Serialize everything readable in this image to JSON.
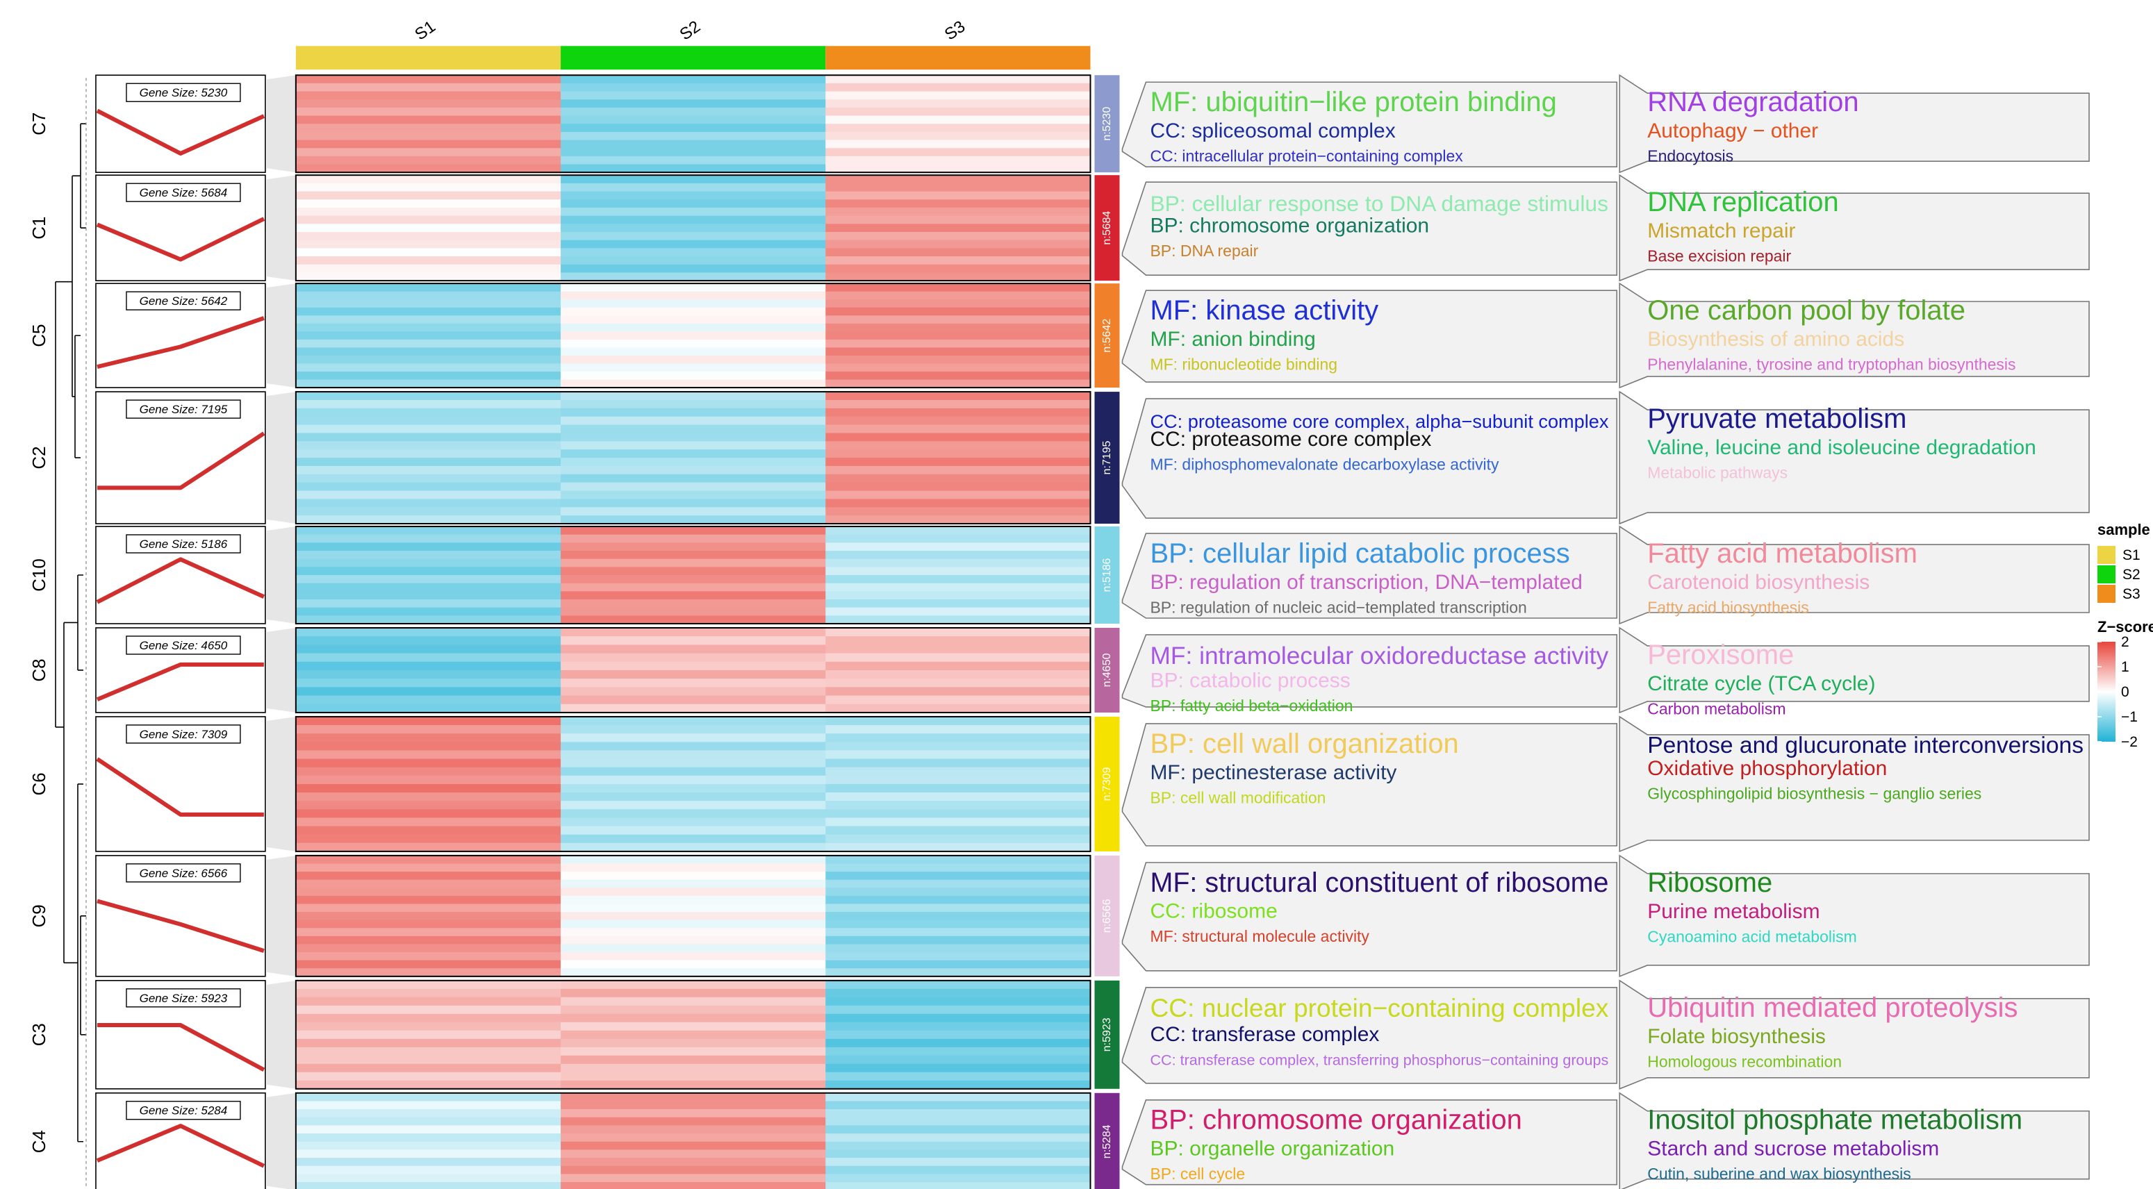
{
  "chart_data": {
    "type": "heatmap",
    "samples": [
      "S1",
      "S2",
      "S3"
    ],
    "sample_colors": {
      "S1": "#EDD445",
      "S2": "#0ED40E",
      "S3": "#F08C1B"
    },
    "legend": {
      "sample_title": "sample",
      "zscore_title": "Z−score",
      "zscore_ticks": [
        "2",
        "1",
        "0",
        "−1",
        "−2"
      ],
      "zscore_values": [
        2,
        1,
        0,
        -1,
        -2
      ],
      "zscore_colors": {
        "high": "#E8453C",
        "mid": "#FFFFFF",
        "low": "#1FB2D6"
      }
    },
    "clusters": [
      {
        "name": "C7",
        "gene_label": "Gene Size: 5230",
        "n_label": "n:5230",
        "color": "#8C9ACD",
        "profile": [
          0.4,
          -0.4,
          0.3
        ],
        "zscore": [
          0.55,
          -0.55,
          0.15
        ],
        "go_terms": [
          {
            "text": "MF: ubiquitin−like protein binding",
            "color": "#5DD34E"
          },
          {
            "text": "CC: spliceosomal complex",
            "color": "#1A2C9E"
          },
          {
            "text": "CC: intracellular protein−containing complex",
            "color": "#2F2FC7"
          }
        ],
        "kegg_terms": [
          {
            "text": "RNA degradation",
            "color": "#A23FE3"
          },
          {
            "text": "Autophagy − other",
            "color": "#E3521F"
          },
          {
            "text": "Endocytosis",
            "color": "#2A1F7A"
          }
        ]
      },
      {
        "name": "C1",
        "gene_label": "Gene Size: 5684",
        "n_label": "n:5684",
        "color": "#D7222F",
        "profile": [
          0.2,
          -0.4,
          0.3
        ],
        "zscore": [
          0.1,
          -0.55,
          0.55
        ],
        "go_terms": [
          {
            "text": "BP: cellular response to DNA damage stimulus",
            "color": "#8FEAB0"
          },
          {
            "text": "BP: chromosome organization",
            "color": "#137A5E"
          },
          {
            "text": "BP: DNA repair",
            "color": "#C9802C"
          }
        ],
        "kegg_terms": [
          {
            "text": "DNA replication",
            "color": "#2FC23A"
          },
          {
            "text": "Mismatch repair",
            "color": "#C9A52C"
          },
          {
            "text": "Base excision repair",
            "color": "#A61E2A"
          }
        ]
      },
      {
        "name": "C5",
        "gene_label": "Gene Size: 5642",
        "n_label": "n:5642",
        "color": "#F0812A",
        "profile": [
          -0.4,
          -0.05,
          0.45
        ],
        "zscore": [
          -0.5,
          0.0,
          0.6
        ],
        "go_terms": [
          {
            "text": "MF: kinase activity",
            "color": "#1E2FD6"
          },
          {
            "text": "MF: anion binding",
            "color": "#22A24A"
          },
          {
            "text": "MF: ribonucleotide binding",
            "color": "#C8C41E"
          }
        ],
        "kegg_terms": [
          {
            "text": "One carbon pool by folate",
            "color": "#5AA82A"
          },
          {
            "text": "Biosynthesis of amino acids",
            "color": "#F2D3A0"
          },
          {
            "text": "Phenylalanine, tyrosine and tryptophan biosynthesis",
            "color": "#D56AD0"
          }
        ]
      },
      {
        "name": "C2",
        "gene_label": "Gene Size: 7195",
        "n_label": "n:7195",
        "color": "#1F235F",
        "profile": [
          -0.3,
          -0.3,
          0.45
        ],
        "zscore": [
          -0.4,
          -0.4,
          0.6
        ],
        "go_terms": [
          {
            "text": "CC: proteasome core complex, alpha−subunit complex",
            "color": "#1321C9"
          },
          {
            "text": "CC: proteasome core complex",
            "color": "#111111"
          },
          {
            "text": "MF: diphosphomevalonate decarboxylase activity",
            "color": "#3466D1"
          }
        ],
        "kegg_terms": [
          {
            "text": "Pyruvate metabolism",
            "color": "#1A1A8C"
          },
          {
            "text": "Valine, leucine and isoleucine degradation",
            "color": "#1FB873"
          },
          {
            "text": "Metabolic pathways",
            "color": "#F2C2D8"
          }
        ]
      },
      {
        "name": "C10",
        "gene_label": "Gene Size: 5186",
        "n_label": "n:5186",
        "color": "#7FD4E5",
        "profile": [
          -0.35,
          0.45,
          -0.25
        ],
        "zscore": [
          -0.55,
          0.6,
          -0.3
        ],
        "go_terms": [
          {
            "text": "BP: cellular lipid catabolic process",
            "color": "#3A95E0"
          },
          {
            "text": "BP: regulation of transcription, DNA−templated",
            "color": "#C860C8"
          },
          {
            "text": "BP: regulation of nucleic acid−templated transcription",
            "color": "#6A6A6A"
          }
        ],
        "kegg_terms": [
          {
            "text": "Fatty acid metabolism",
            "color": "#F08A9A"
          },
          {
            "text": "Carotenoid biosynthesis",
            "color": "#F2A6C8"
          },
          {
            "text": "Fatty acid biosynthesis",
            "color": "#E8A86A"
          }
        ]
      },
      {
        "name": "C8",
        "gene_label": "Gene Size: 4650",
        "n_label": "n:4650",
        "color": "#B7679E",
        "profile": [
          -0.45,
          0.3,
          0.3
        ],
        "zscore": [
          -0.65,
          0.35,
          0.35
        ],
        "go_terms": [
          {
            "text": "MF: intramolecular oxidoreductase activity",
            "color": "#A559E0"
          },
          {
            "text": "BP: catabolic process",
            "color": "#F2B6E8"
          },
          {
            "text": "BP: fatty acid beta−oxidation",
            "color": "#3FC11A"
          }
        ],
        "kegg_terms": [
          {
            "text": "Peroxisome",
            "color": "#F7B8D6"
          },
          {
            "text": "Citrate cycle (TCA cycle)",
            "color": "#1FAE5B"
          },
          {
            "text": "Carbon metabolism",
            "color": "#9A1FB0"
          }
        ]
      },
      {
        "name": "C6",
        "gene_label": "Gene Size: 7309",
        "n_label": "n:7309",
        "color": "#F5E200",
        "profile": [
          0.45,
          -0.3,
          -0.3
        ],
        "zscore": [
          0.65,
          -0.35,
          -0.35
        ],
        "go_terms": [
          {
            "text": "BP: cell wall organization",
            "color": "#F2CA5A"
          },
          {
            "text": "MF: pectinesterase activity",
            "color": "#1F3A6A"
          },
          {
            "text": "BP: cell wall modification",
            "color": "#C2D81E"
          }
        ],
        "kegg_terms": [
          {
            "text": "Pentose and glucuronate interconversions",
            "color": "#12126E"
          },
          {
            "text": "Oxidative phosphorylation",
            "color": "#C21E1E"
          },
          {
            "text": "Glycosphingolipid biosynthesis − ganglio series",
            "color": "#4CA81E"
          }
        ]
      },
      {
        "name": "C9",
        "gene_label": "Gene Size: 6566",
        "n_label": "n:6566",
        "color": "#E8C8DE",
        "profile": [
          0.35,
          0.0,
          -0.4
        ],
        "zscore": [
          0.6,
          0.0,
          -0.5
        ],
        "go_terms": [
          {
            "text": "MF: structural constituent of ribosome",
            "color": "#2A0F6E"
          },
          {
            "text": "CC: ribosome",
            "color": "#7CE01E"
          },
          {
            "text": "MF: structural molecule activity",
            "color": "#D8402A"
          }
        ],
        "kegg_terms": [
          {
            "text": "Ribosome",
            "color": "#1E8A1E"
          },
          {
            "text": "Purine metabolism",
            "color": "#C21E7E"
          },
          {
            "text": "Cyanoamino acid metabolism",
            "color": "#2FD8C2"
          }
        ]
      },
      {
        "name": "C3",
        "gene_label": "Gene Size: 5923",
        "n_label": "n:5923",
        "color": "#147A3A",
        "profile": [
          0.3,
          0.3,
          -0.45
        ],
        "zscore": [
          0.35,
          0.35,
          -0.65
        ],
        "go_terms": [
          {
            "text": "CC: nuclear protein−containing complex",
            "color": "#C8D81E"
          },
          {
            "text": "CC: transferase complex",
            "color": "#12126E"
          },
          {
            "text": "CC: transferase complex, transferring phosphorus−containing groups",
            "color": "#B66AE0"
          }
        ],
        "kegg_terms": [
          {
            "text": "Ubiquitin mediated proteolysis",
            "color": "#E86AB0"
          },
          {
            "text": "Folate biosynthesis",
            "color": "#7AA81E"
          },
          {
            "text": "Homologous recombination",
            "color": "#7AC21E"
          }
        ]
      },
      {
        "name": "C4",
        "gene_label": "Gene Size: 5284",
        "n_label": "n:5284",
        "color": "#7A2A8C",
        "profile": [
          -0.2,
          0.45,
          -0.3
        ],
        "zscore": [
          -0.2,
          0.55,
          -0.4
        ],
        "go_terms": [
          {
            "text": "BP: chromosome organization",
            "color": "#D21E6A"
          },
          {
            "text": "BP: organelle organization",
            "color": "#5AC81E"
          },
          {
            "text": "BP: cell cycle",
            "color": "#F0A81E"
          }
        ],
        "kegg_terms": [
          {
            "text": "Inositol phosphate metabolism",
            "color": "#1E7A2A"
          },
          {
            "text": "Starch and sucrose metabolism",
            "color": "#7A1FB0"
          },
          {
            "text": "Cutin, suberine and wax biosynthesis",
            "color": "#1E6A8C"
          }
        ]
      }
    ]
  }
}
